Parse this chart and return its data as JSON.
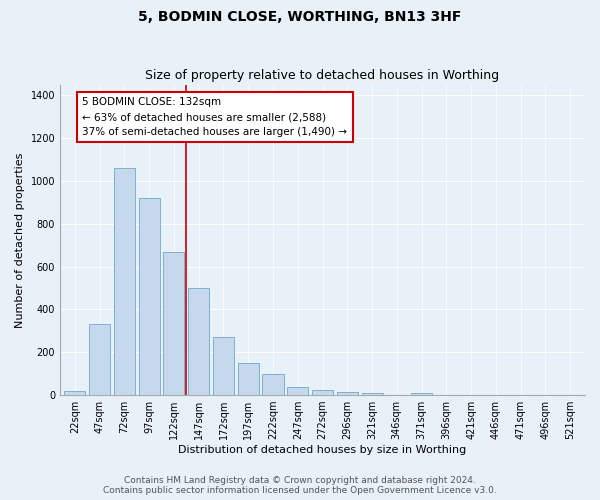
{
  "title": "5, BODMIN CLOSE, WORTHING, BN13 3HF",
  "subtitle": "Size of property relative to detached houses in Worthing",
  "xlabel": "Distribution of detached houses by size in Worthing",
  "ylabel": "Number of detached properties",
  "categories": [
    "22sqm",
    "47sqm",
    "72sqm",
    "97sqm",
    "122sqm",
    "147sqm",
    "172sqm",
    "197sqm",
    "222sqm",
    "247sqm",
    "272sqm",
    "296sqm",
    "321sqm",
    "346sqm",
    "371sqm",
    "396sqm",
    "421sqm",
    "446sqm",
    "471sqm",
    "496sqm",
    "521sqm"
  ],
  "values": [
    18,
    330,
    1060,
    920,
    670,
    500,
    270,
    150,
    100,
    40,
    22,
    15,
    10,
    0,
    12,
    0,
    0,
    0,
    0,
    0,
    0
  ],
  "bar_color": "#c5d8ec",
  "bar_edge_color": "#6fa8d0",
  "bar_width": 0.85,
  "property_line_x": 4.5,
  "property_line_color": "#cc0000",
  "annotation_text": "5 BODMIN CLOSE: 132sqm\n← 63% of detached houses are smaller (2,588)\n37% of semi-detached houses are larger (1,490) →",
  "annotation_box_color": "#ffffff",
  "annotation_box_edge": "#cc0000",
  "ylim": [
    0,
    1450
  ],
  "yticks": [
    0,
    200,
    400,
    600,
    800,
    1000,
    1200,
    1400
  ],
  "bg_color": "#e8f0f8",
  "plot_bg_color": "#e8f0f8",
  "footer_line1": "Contains HM Land Registry data © Crown copyright and database right 2024.",
  "footer_line2": "Contains public sector information licensed under the Open Government Licence v3.0.",
  "title_fontsize": 10,
  "subtitle_fontsize": 9,
  "axis_label_fontsize": 8,
  "tick_fontsize": 7,
  "annotation_fontsize": 7.5,
  "footer_fontsize": 6.5
}
